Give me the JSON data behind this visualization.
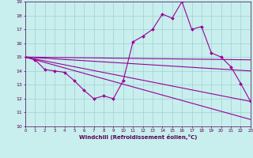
{
  "xlabel": "Windchill (Refroidissement éolien,°C)",
  "xlim": [
    0,
    23
  ],
  "ylim": [
    10,
    19
  ],
  "xtick_labels": [
    "0",
    "1",
    "2",
    "3",
    "4",
    "5",
    "6",
    "7",
    "8",
    "9",
    "10",
    "11",
    "12",
    "13",
    "14",
    "15",
    "16",
    "17",
    "18",
    "19",
    "20",
    "21",
    "22",
    "23"
  ],
  "ytick_labels": [
    "10",
    "11",
    "12",
    "13",
    "14",
    "15",
    "16",
    "17",
    "18",
    "19"
  ],
  "background_color": "#c8eeed",
  "grid_color": "#9ed4d2",
  "line_color": "#990099",
  "line1_x": [
    0,
    1,
    2,
    3,
    4,
    5,
    6,
    7,
    8,
    9,
    10,
    11,
    12,
    13,
    14,
    15,
    16,
    17,
    18,
    19,
    20,
    21,
    22,
    23
  ],
  "line1_y": [
    15.0,
    14.8,
    14.1,
    14.0,
    13.9,
    13.3,
    12.6,
    12.0,
    12.2,
    12.0,
    13.3,
    16.1,
    16.5,
    17.0,
    18.1,
    17.8,
    19.0,
    17.0,
    17.2,
    15.3,
    15.0,
    14.3,
    13.1,
    11.8
  ],
  "line2_x": [
    0,
    23
  ],
  "line2_y": [
    15.0,
    14.8
  ],
  "line3_x": [
    0,
    23
  ],
  "line3_y": [
    15.0,
    14.0
  ],
  "line4_x": [
    0,
    23
  ],
  "line4_y": [
    15.0,
    10.5
  ],
  "line5_x": [
    0,
    23
  ],
  "line5_y": [
    15.0,
    11.8
  ]
}
